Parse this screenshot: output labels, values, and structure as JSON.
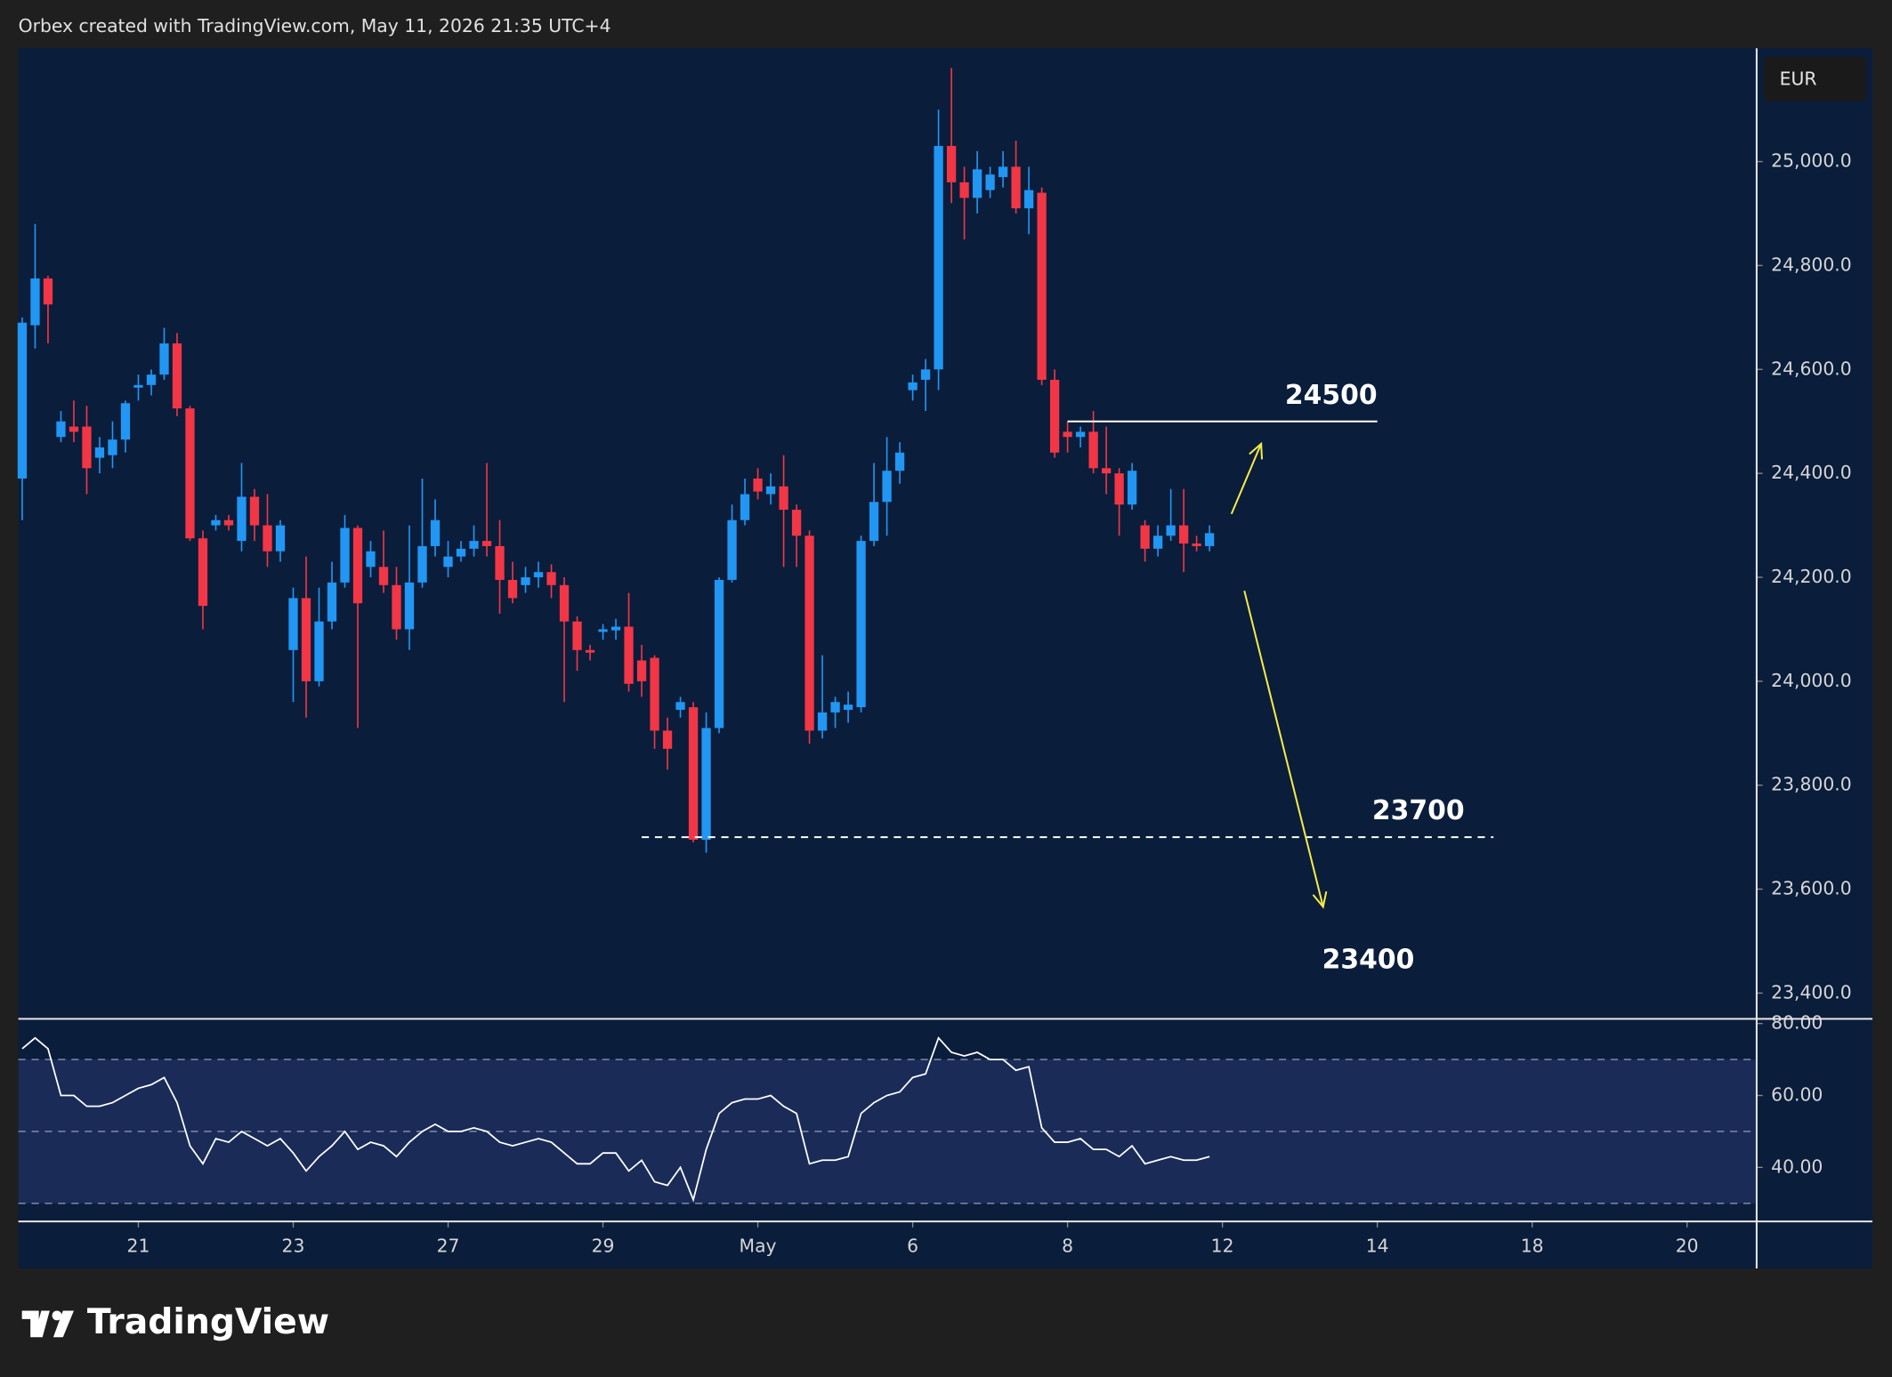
{
  "header": "Orbex created with TradingView.com, May 11, 2026 21:35 UTC+4",
  "logo": "TradingView",
  "chart_data": {
    "type": "candlestick",
    "currency": "EUR",
    "up_color": "#2196f3",
    "down_color": "#f23645",
    "x": [
      0,
      1,
      2,
      3,
      4,
      5,
      6,
      7,
      8,
      9,
      10,
      11,
      12,
      13,
      14,
      15,
      16,
      17,
      18,
      19,
      20,
      21,
      22,
      23,
      24,
      25,
      26,
      27,
      28,
      29,
      30,
      31,
      32,
      33,
      34,
      35,
      36,
      37,
      38,
      39,
      40,
      41,
      42,
      43,
      44,
      45,
      46,
      47,
      48,
      49,
      50,
      51,
      52,
      53,
      54,
      55,
      56,
      57,
      58,
      59,
      60,
      61,
      62,
      63,
      64,
      65,
      66,
      67,
      68,
      69,
      70,
      71,
      72,
      73,
      74,
      75,
      76,
      77,
      78,
      79,
      80,
      81,
      82,
      83,
      84,
      85,
      86,
      87,
      88,
      89,
      90,
      91,
      92
    ],
    "open": [
      24390,
      24685,
      24775,
      24470,
      24490,
      24490,
      24430,
      24435,
      24465,
      24565,
      24570,
      24590,
      24650,
      24525,
      24275,
      24300,
      24310,
      24270,
      24355,
      24300,
      24250,
      24060,
      24160,
      24000,
      24115,
      24190,
      24295,
      24220,
      24220,
      24185,
      24100,
      24190,
      24260,
      24220,
      24240,
      24255,
      24270,
      24260,
      24195,
      24185,
      24200,
      24210,
      24185,
      24115,
      24060,
      24095,
      24098,
      24105,
      24040,
      24045,
      23905,
      23945,
      23950,
      23695,
      23910,
      24195,
      24310,
      24390,
      24360,
      24375,
      24330,
      24280,
      23905,
      23940,
      23945,
      23950,
      24270,
      24345,
      24405,
      24560,
      24580,
      24600,
      25030,
      24960,
      24930,
      24945,
      24970,
      24990,
      24910,
      24940,
      24580,
      24480,
      24470,
      24480,
      24410,
      24400,
      24340,
      24300,
      24255,
      24280,
      24300,
      24265,
      24260
    ],
    "high": [
      24700,
      24880,
      24780,
      24520,
      24540,
      24530,
      24470,
      24500,
      24540,
      24590,
      24600,
      24680,
      24670,
      24530,
      24290,
      24320,
      24320,
      24420,
      24370,
      24360,
      24310,
      24180,
      24240,
      24180,
      24230,
      24320,
      24300,
      24270,
      24290,
      24220,
      24300,
      24390,
      24350,
      24270,
      24270,
      24300,
      24420,
      24310,
      24230,
      24220,
      24230,
      24225,
      24200,
      24125,
      24070,
      24110,
      24120,
      24170,
      24070,
      24050,
      23930,
      23970,
      23960,
      23940,
      24200,
      24340,
      24390,
      24410,
      24400,
      24435,
      24340,
      24290,
      24050,
      23970,
      23980,
      24280,
      24420,
      24470,
      24460,
      24590,
      24620,
      25100,
      25180,
      24990,
      25020,
      24990,
      25020,
      25040,
      24990,
      24950,
      24600,
      24500,
      24490,
      24520,
      24490,
      24410,
      24420,
      24310,
      24300,
      24370,
      24370,
      24280,
      24300
    ],
    "low": [
      24310,
      24640,
      24650,
      24460,
      24460,
      24360,
      24400,
      24410,
      24440,
      24540,
      24550,
      24580,
      24510,
      24270,
      24100,
      24290,
      24290,
      24250,
      24270,
      24220,
      24230,
      23960,
      23930,
      23990,
      24100,
      24180,
      23910,
      24200,
      24170,
      24080,
      24060,
      24180,
      24240,
      24200,
      24230,
      24240,
      24240,
      24130,
      24150,
      24170,
      24180,
      24160,
      23960,
      24020,
      24040,
      24080,
      24080,
      23980,
      23970,
      23870,
      23830,
      23930,
      23690,
      23670,
      23900,
      24190,
      24300,
      24350,
      24340,
      24220,
      24220,
      23880,
      23890,
      23910,
      23920,
      23940,
      24260,
      24280,
      24380,
      24540,
      24520,
      24560,
      24920,
      24850,
      24900,
      24930,
      24950,
      24900,
      24860,
      24570,
      24430,
      24440,
      24450,
      24400,
      24360,
      24280,
      24330,
      24230,
      24240,
      24270,
      24210,
      24250,
      24250
    ],
    "close": [
      24690,
      24775,
      24725,
      24500,
      24480,
      24410,
      24450,
      24465,
      24535,
      24570,
      24590,
      24650,
      24525,
      24275,
      24145,
      24310,
      24300,
      24355,
      24300,
      24250,
      24300,
      24160,
      24000,
      24115,
      24190,
      24295,
      24150,
      24250,
      24185,
      24100,
      24190,
      24260,
      24310,
      24240,
      24255,
      24270,
      24260,
      24195,
      24160,
      24200,
      24210,
      24185,
      24115,
      24060,
      24055,
      24100,
      24105,
      23995,
      24000,
      23905,
      23870,
      23960,
      23695,
      23910,
      24195,
      24310,
      24360,
      24365,
      24375,
      24330,
      24280,
      23905,
      23940,
      23960,
      23955,
      24270,
      24345,
      24405,
      24440,
      24575,
      24600,
      25030,
      24960,
      24930,
      24985,
      24975,
      24990,
      24910,
      24945,
      24580,
      24440,
      24470,
      24480,
      24410,
      24400,
      24340,
      24405,
      24255,
      24280,
      24300,
      24265,
      24260,
      24285
    ],
    "xlim": [
      -0.3,
      134.3
    ],
    "xticks": [
      {
        "value": 9,
        "label": "21"
      },
      {
        "value": 21,
        "label": "23"
      },
      {
        "value": 33,
        "label": "27"
      },
      {
        "value": 45,
        "label": "29"
      },
      {
        "value": 57,
        "label": "May"
      },
      {
        "value": 69,
        "label": "6"
      },
      {
        "value": 81,
        "label": "8"
      },
      {
        "value": 93,
        "label": "12"
      },
      {
        "value": 105,
        "label": "14"
      },
      {
        "value": 117,
        "label": "18"
      },
      {
        "value": 129,
        "label": "20"
      }
    ],
    "ylim": [
      23355,
      25218
    ],
    "yticks": [
      {
        "value": 25000,
        "label": "25,000.0"
      },
      {
        "value": 24800,
        "label": "24,800.0"
      },
      {
        "value": 24600,
        "label": "24,600.0"
      },
      {
        "value": 24400,
        "label": "24,400.0"
      },
      {
        "value": 24200,
        "label": "24,200.0"
      },
      {
        "value": 24000,
        "label": "24,000.0"
      },
      {
        "value": 23800,
        "label": "23,800.0"
      },
      {
        "value": 23600,
        "label": "23,600.0"
      },
      {
        "value": 23400,
        "label": "23,400.0"
      }
    ],
    "levels": [
      {
        "value": 24500,
        "from": 81,
        "to": 105,
        "style": "solid"
      },
      {
        "value": 23700,
        "from": 48,
        "to": 114,
        "style": "dashed"
      }
    ],
    "target": {
      "value": 23400,
      "x": 104.3
    },
    "arrows": [
      {
        "x": [
          93.7,
          96
        ],
        "y": [
          24322,
          24457
        ],
        "color": "#f5e94a"
      },
      {
        "x": [
          94.7,
          100.8
        ],
        "y": [
          24174,
          23566
        ],
        "color": "#f5e94a"
      }
    ],
    "rsi": {
      "type": "line",
      "color": "#ffffff",
      "values": [
        73,
        76,
        73,
        60,
        60,
        57,
        57,
        58,
        60,
        62,
        63,
        65,
        58,
        46,
        41,
        48,
        47,
        50,
        48,
        46,
        48,
        44,
        39,
        43,
        46,
        50,
        45,
        47,
        46,
        43,
        47,
        50,
        52,
        50,
        50,
        51,
        50,
        47,
        46,
        47,
        48,
        47,
        44,
        41,
        41,
        44,
        44,
        39,
        42,
        36,
        35,
        40,
        31,
        45,
        55,
        58,
        59,
        59,
        60,
        57,
        55,
        41,
        42,
        42,
        43,
        55,
        58,
        60,
        61,
        65,
        66,
        76,
        72,
        71,
        72,
        70,
        70,
        67,
        68,
        51,
        47,
        47,
        48,
        45,
        45,
        43,
        46,
        41,
        42,
        43,
        42,
        42,
        43
      ],
      "ylim": [
        25.3,
        81.3
      ],
      "yticks": [
        {
          "value": 80,
          "label": "80.00"
        },
        {
          "value": 60,
          "label": "60.00"
        },
        {
          "value": 40,
          "label": "40.00"
        }
      ],
      "bands": [
        30,
        50,
        70
      ]
    }
  }
}
